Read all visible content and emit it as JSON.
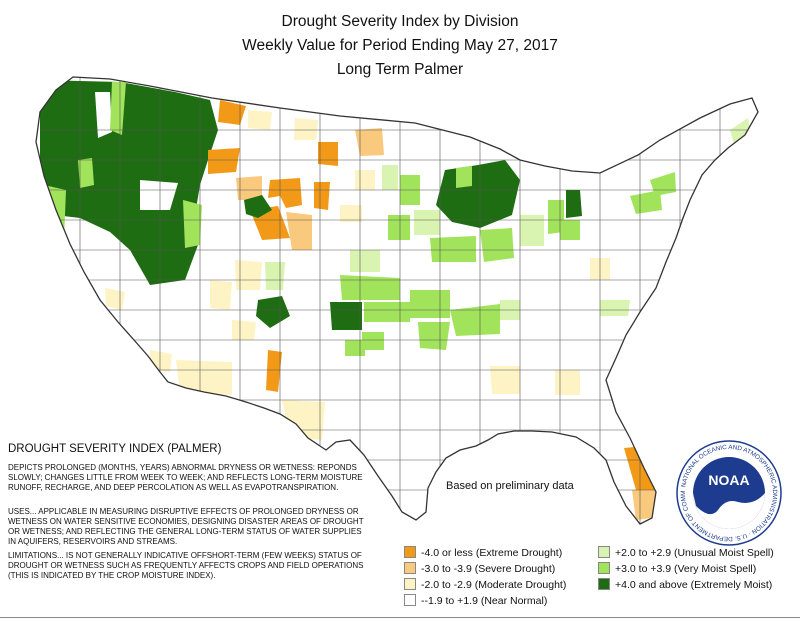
{
  "titles": {
    "line1": "Drought Severity Index by Division",
    "line2": "Weekly Value for Period Ending May 27, 2017",
    "line3": "Long Term Palmer"
  },
  "info": {
    "heading": "DROUGHT SEVERITY INDEX (PALMER)",
    "depicts": "DEPICTS PROLONGED (MONTHS, YEARS) ABNORMAL DRYNESS OR WETNESS: REPONDS SLOWLY; CHANGES LITTLE FROM WEEK TO WEEK; AND REFLECTS LONG-TERM MOISTURE RUNOFF, RECHARGE, AND DEEP PERCOLATION AS WELL AS EVAPOTRANSPIRATION.",
    "uses": "USES... APPLICABLE IN MEASURING DISRUPTIVE EFFECTS OF PROLONGED DRYNESS OR WETNESS ON WATER SENSITIVE ECONOMIES, DESIGNING DISASTER AREAS OF DROUGHT OR WETNESS; AND REFLECTING THE GENERAL LONG-TERM STATUS OF WATER SUPPLIES IN AQUIFERS, RESERVOIRS AND STREAMS.",
    "limitations": "LIMITATIONS... IS NOT GENERALLY INDICATIVE OFFSHORT-TERM (FEW WEEKS) STATUS OF DROUGHT OR WETNESS SUCH AS FREQUENTLY AFFECTS CROPS AND FIELD OPERATIONS (THIS IS INDICATED BY THE CROP MOISTURE INDEX)."
  },
  "preliminary_note": "Based on preliminary data",
  "legend": [
    {
      "label": "-4.0 or less (Extreme Drought)",
      "color": "#f29a18"
    },
    {
      "label": "-3.0 to -3.9 (Severe Drought)",
      "color": "#f9c97e"
    },
    {
      "label": "-2.0 to -2.9 (Moderate Drought)",
      "color": "#fdf3c4"
    },
    {
      "label": "--1.9 to +1.9 (Near Normal)",
      "color": "#ffffff"
    },
    {
      "label": "+2.0 to +2.9 (Unusual Moist Spell)",
      "color": "#d9f3b0"
    },
    {
      "label": "+3.0 to +3.9 (Very Moist Spell)",
      "color": "#a2e35c"
    },
    {
      "label": "+4.0 and above (Extremely Moist)",
      "color": "#1f6d12"
    }
  ],
  "colors": {
    "extreme_drought": "#f29a18",
    "severe_drought": "#f9c97e",
    "moderate_drought": "#fdf3c4",
    "near_normal": "#ffffff",
    "unusual_moist": "#d9f3b0",
    "very_moist": "#a2e35c",
    "extremely_moist": "#1f6d12",
    "boundary": "#555555"
  },
  "logo": {
    "wordmark": "NOAA",
    "ring_text": "NATIONAL OCEANIC AND ATMOSPHERIC ADMINISTRATION · U.S. DEPARTMENT OF COMMERCE"
  }
}
